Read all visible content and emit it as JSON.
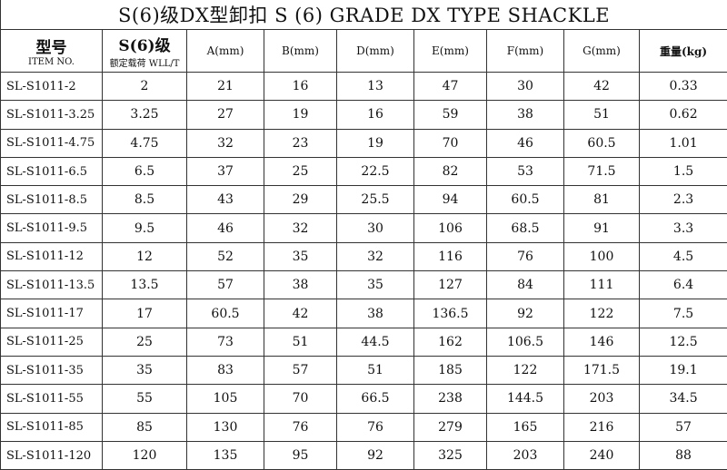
{
  "title": "S(6)级DX型卸扣 S (6) GRADE DX TYPE SHACKLE",
  "headers": {
    "item_cn": "型号",
    "item_en": "ITEM NO.",
    "wll_cn": "S(6)级",
    "wll_en": "额定载荷 WLL/T",
    "a": "A(mm)",
    "b": "B(mm)",
    "d": "D(mm)",
    "e": "E(mm)",
    "f": "F(mm)",
    "g": "G(mm)",
    "weight": "重量(kg)"
  },
  "rows": [
    [
      "SL-S1011-2",
      "2",
      "21",
      "16",
      "13",
      "47",
      "30",
      "42",
      "0.33"
    ],
    [
      "SL-S1011-3.25",
      "3.25",
      "27",
      "19",
      "16",
      "59",
      "38",
      "51",
      "0.62"
    ],
    [
      "SL-S1011-4.75",
      "4.75",
      "32",
      "23",
      "19",
      "70",
      "46",
      "60.5",
      "1.01"
    ],
    [
      "SL-S1011-6.5",
      "6.5",
      "37",
      "25",
      "22.5",
      "82",
      "53",
      "71.5",
      "1.5"
    ],
    [
      "SL-S1011-8.5",
      "8.5",
      "43",
      "29",
      "25.5",
      "94",
      "60.5",
      "81",
      "2.3"
    ],
    [
      "SL-S1011-9.5",
      "9.5",
      "46",
      "32",
      "30",
      "106",
      "68.5",
      "91",
      "3.3"
    ],
    [
      "SL-S1011-12",
      "12",
      "52",
      "35",
      "32",
      "116",
      "76",
      "100",
      "4.5"
    ],
    [
      "SL-S1011-13.5",
      "13.5",
      "57",
      "38",
      "35",
      "127",
      "84",
      "111",
      "6.4"
    ],
    [
      "SL-S1011-17",
      "17",
      "60.5",
      "42",
      "38",
      "136.5",
      "92",
      "122",
      "7.5"
    ],
    [
      "SL-S1011-25",
      "25",
      "73",
      "51",
      "44.5",
      "162",
      "106.5",
      "146",
      "12.5"
    ],
    [
      "SL-S1011-35",
      "35",
      "83",
      "57",
      "51",
      "185",
      "122",
      "171.5",
      "19.1"
    ],
    [
      "SL-S1011-55",
      "55",
      "105",
      "70",
      "66.5",
      "238",
      "144.5",
      "203",
      "34.5"
    ],
    [
      "SL-S1011-85",
      "85",
      "130",
      "76",
      "76",
      "279",
      "165",
      "216",
      "57"
    ],
    [
      "SL-S1011-120",
      "120",
      "135",
      "95",
      "92",
      "325",
      "203",
      "240",
      "88"
    ]
  ]
}
